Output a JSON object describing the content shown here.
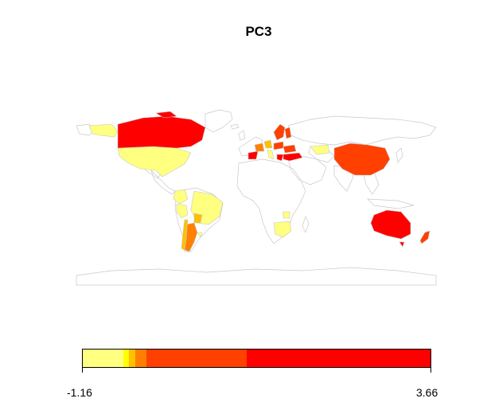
{
  "title": "PC3",
  "colors": {
    "lowest": "#ffff80",
    "low": "#ffff00",
    "mid_low": "#ffc000",
    "mid": "#ff8000",
    "high": "#ff4000",
    "highest": "#ff0000",
    "border": "#c8c8c8"
  },
  "legend": {
    "min_label": "-1.16",
    "max_label": "3.66",
    "segments": [
      {
        "color": "#ffff80",
        "from": -1.16,
        "to": -0.6
      },
      {
        "color": "#ffff00",
        "from": -0.6,
        "to": -0.52
      },
      {
        "color": "#ffc000",
        "from": -0.52,
        "to": -0.43
      },
      {
        "color": "#ff8000",
        "from": -0.43,
        "to": -0.28
      },
      {
        "color": "#ff4000",
        "from": -0.28,
        "to": 1.11
      },
      {
        "color": "#ff0000",
        "from": 1.11,
        "to": 3.66
      }
    ]
  }
}
